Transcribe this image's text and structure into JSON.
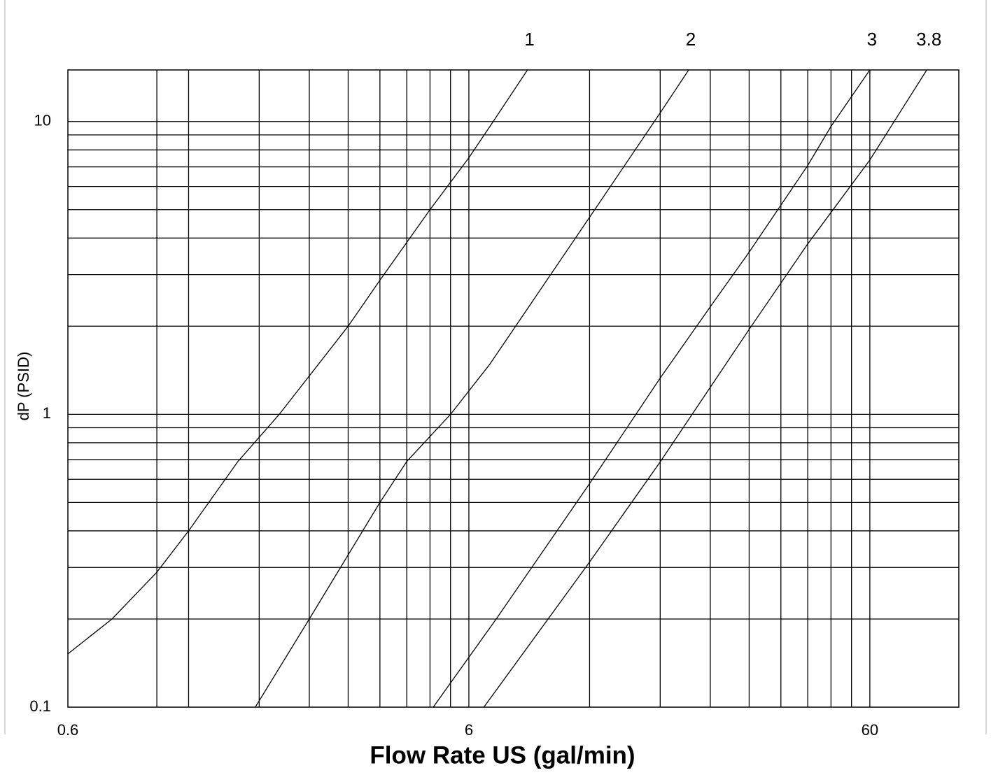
{
  "chart_data": {
    "type": "line",
    "xlabel": "Flow Rate US (gal/min)",
    "ylabel": "dP  (PSID)",
    "xscale": "log",
    "yscale": "log",
    "xlim": [
      0.6,
      100
    ],
    "ylim": [
      0.1,
      15
    ],
    "xticks": [
      0.6,
      6,
      60
    ],
    "yticks": [
      0.1,
      1,
      10
    ],
    "xgrid": [
      1.0,
      1.2,
      1.8,
      2.4,
      3.0,
      3.6,
      4.2,
      4.8,
      5.4,
      6,
      12,
      18,
      24,
      30,
      36,
      42,
      48,
      54,
      60
    ],
    "ygrid": [
      0.2,
      0.3,
      0.4,
      0.5,
      0.6,
      0.7,
      0.8,
      0.9,
      1,
      2,
      3,
      4,
      5,
      6,
      7,
      8,
      9,
      10
    ],
    "grid": true,
    "series": [
      {
        "name": "1",
        "color": "#000000",
        "x": [
          0.6,
          0.773,
          1.0,
          1.2,
          1.59,
          2.02,
          3.0,
          3.6,
          4.8,
          6,
          6.9,
          8.4
        ],
        "values": [
          0.152,
          0.2,
          0.289,
          0.4,
          0.688,
          1.0,
          2.0,
          2.87,
          5.0,
          7.52,
          10,
          15
        ]
      },
      {
        "name": "2",
        "color": "#000000",
        "x": [
          1.76,
          2.4,
          3.6,
          4.2,
          5.4,
          6.76,
          12,
          18,
          21.2
        ],
        "values": [
          0.1,
          0.2,
          0.5,
          0.69,
          1.0,
          1.48,
          4.71,
          10.7,
          15
        ]
      },
      {
        "name": "3",
        "color": "#000000",
        "x": [
          4.89,
          7.02,
          12,
          18,
          24,
          30,
          42,
          48,
          60
        ],
        "values": [
          0.1,
          0.2,
          0.58,
          1.33,
          2.33,
          3.58,
          7.08,
          9.62,
          15
        ]
      },
      {
        "name": "3.8",
        "color": "#000000",
        "x": [
          6.54,
          12,
          18,
          30,
          42,
          60,
          83.2
        ],
        "values": [
          0.1,
          0.313,
          0.688,
          1.95,
          3.82,
          7.39,
          15
        ]
      }
    ]
  }
}
